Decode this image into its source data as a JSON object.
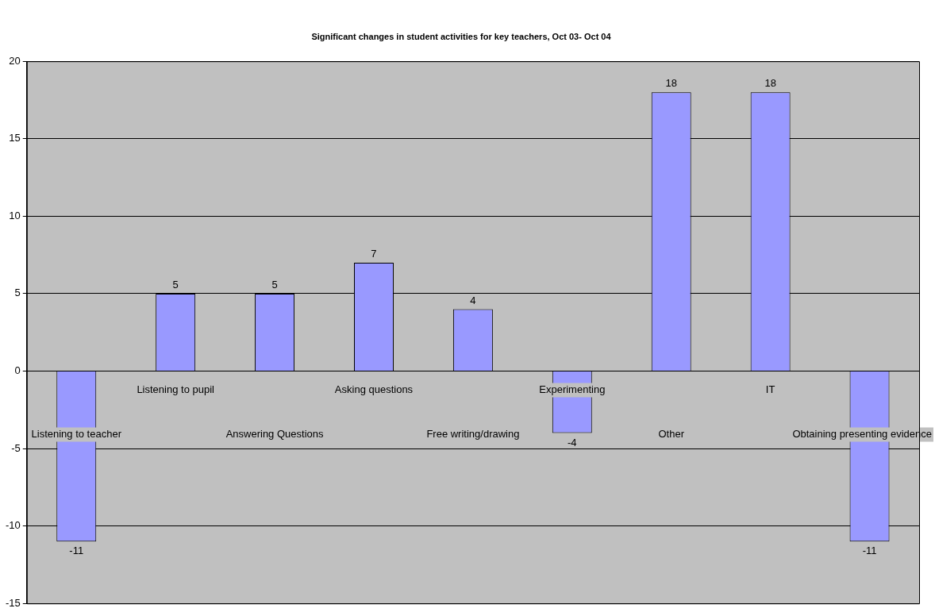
{
  "chart_data": {
    "type": "bar",
    "title": "Significant changes in student activities for key teachers, Oct 03- Oct 04",
    "categories": [
      "Listening to teacher",
      "Listening to pupil",
      "Answering Questions",
      "Asking questions",
      "Free writing/drawing",
      "Experimenting",
      "Other",
      "IT",
      "Obtaining presenting evidence"
    ],
    "values": [
      -11,
      5,
      5,
      7,
      4,
      -4,
      18,
      18,
      -11
    ],
    "color": "#9999ff",
    "ylim": [
      -15,
      20
    ],
    "yticks": [
      -15,
      -10,
      -5,
      0,
      5,
      10,
      15,
      20
    ],
    "grid": "y",
    "data_labels": true
  }
}
